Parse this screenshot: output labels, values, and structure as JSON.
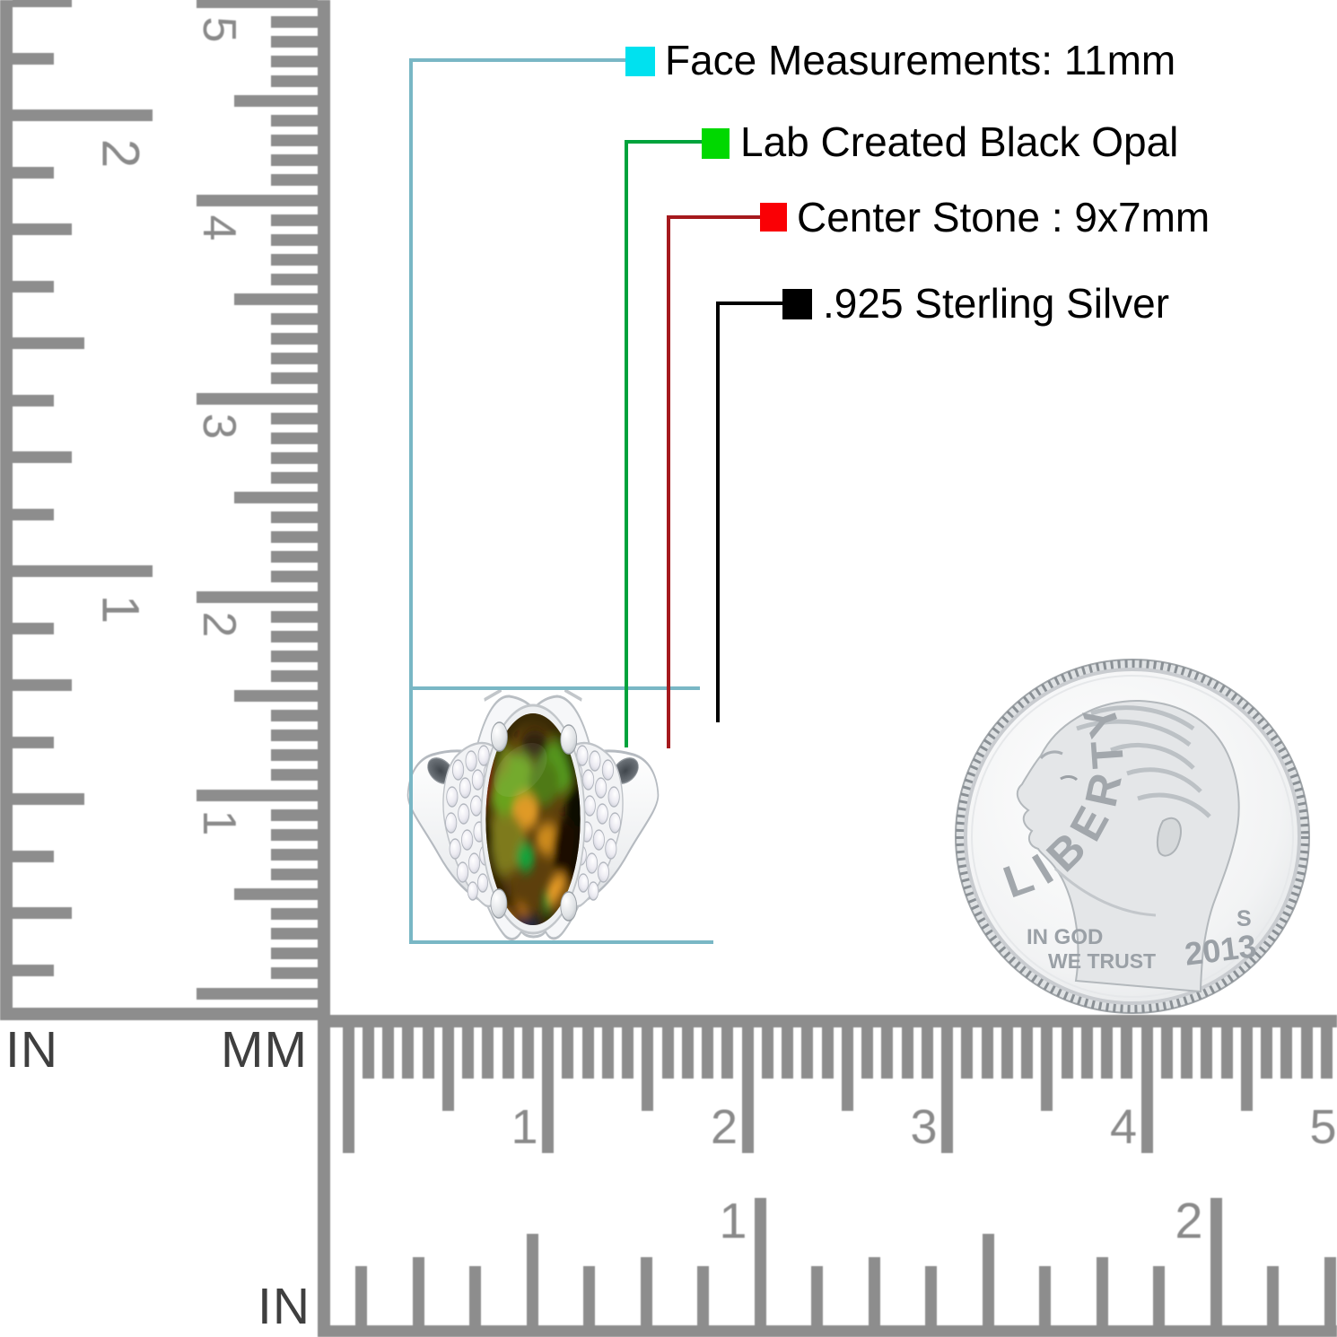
{
  "annotations": {
    "items": [
      {
        "label": "Face Measurements: 11mm",
        "swatch_color": "#00e1ef",
        "line_color": "#79b7c5"
      },
      {
        "label": "Lab Created Black Opal",
        "swatch_color": "#00d800",
        "line_color": "#00a33c"
      },
      {
        "label": "Center Stone : 9x7mm",
        "swatch_color": "#fa0005",
        "line_color": "#a5191d"
      },
      {
        "label": ".925 Sterling Silver",
        "swatch_color": "#000000",
        "line_color": "#000000"
      }
    ]
  },
  "rulers": {
    "color": "#8d8d8d",
    "number_color": "#8a8a8a",
    "unit_color": "#3f3f3f",
    "left_inch": {
      "unit": "IN",
      "numbers": [
        "2",
        "1"
      ]
    },
    "left_mm": {
      "unit": "MM",
      "numbers": [
        "5",
        "4",
        "3",
        "2",
        "1"
      ]
    },
    "bottom_mm": {
      "numbers": [
        "1",
        "2",
        "3",
        "4",
        "5"
      ]
    },
    "bottom_inch": {
      "unit": "IN",
      "numbers": [
        "1",
        "2"
      ]
    }
  },
  "coin": {
    "legend": "LIBERTY",
    "motto_line1": "IN GOD",
    "motto_line2": "WE TRUST",
    "mint_mark": "S",
    "year": "2013"
  }
}
